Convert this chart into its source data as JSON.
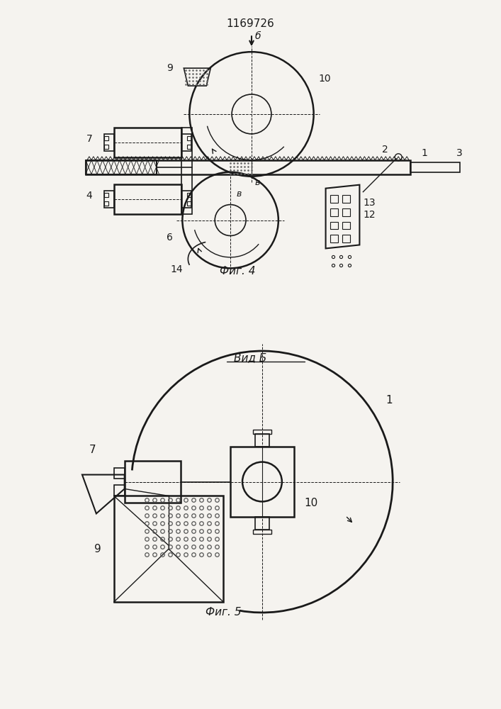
{
  "title": "1169726",
  "bg_color": "#f5f3ef",
  "line_color": "#1a1a1a",
  "fig4_label": "Фиг. 4",
  "fig5_label": "Фиг. 5",
  "vid_b_label": "Вид Б"
}
